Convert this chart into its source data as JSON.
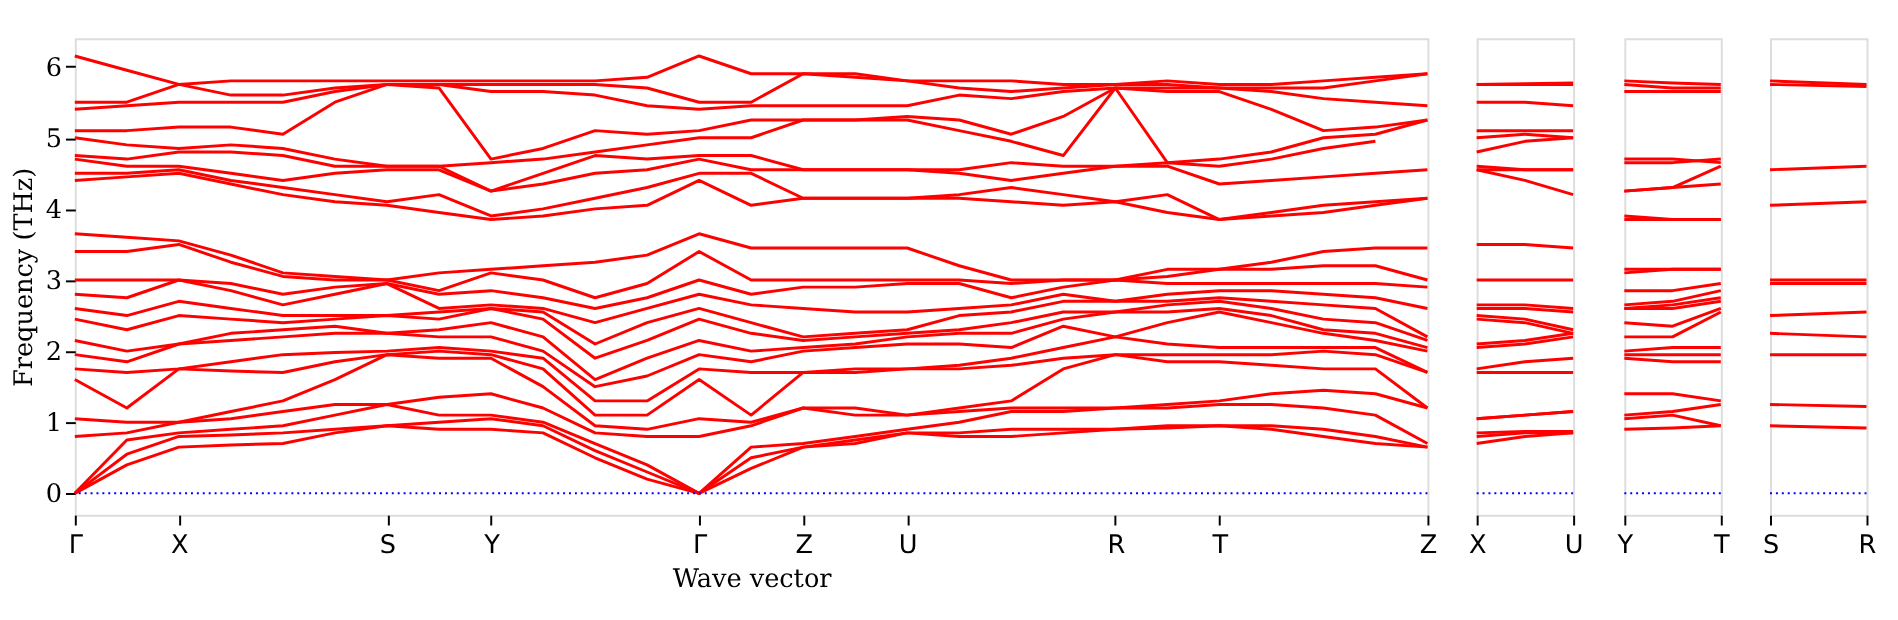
{
  "chart_data": [
    {
      "type": "line",
      "xlabel": "Wave vector",
      "ylabel": "Frequency (THz)",
      "categories": [
        "Γ",
        null,
        "X",
        null,
        null,
        null,
        "S",
        null,
        "Y",
        null,
        null,
        null,
        "Γ",
        null,
        "Z",
        null,
        "U",
        null,
        null,
        null,
        "R",
        null,
        "T",
        null,
        null,
        null,
        "Z"
      ],
      "ylim": [
        -0.3,
        6.4
      ],
      "yticks": [
        0,
        1,
        2,
        3,
        4,
        5,
        6
      ],
      "grid": false,
      "legend": false,
      "ref_lines": [
        {
          "axis": "y",
          "value": 0,
          "color": "#0000ff",
          "line_style": "dotted"
        }
      ],
      "series": [
        {
          "color": "#ff0000",
          "values": [
            0,
            0.4,
            0.65,
            0.68,
            0.7,
            0.85,
            0.95,
            0.9,
            0.9,
            0.85,
            0.5,
            0.2,
            0,
            0.35,
            0.65,
            0.7,
            0.85,
            0.8,
            0.8,
            0.85,
            0.9,
            0.92,
            0.95,
            0.9,
            0.8,
            0.7,
            0.65
          ]
        },
        {
          "color": "#ff0000",
          "values": [
            0,
            0.55,
            0.8,
            0.82,
            0.85,
            0.9,
            0.95,
            1.0,
            1.05,
            0.95,
            0.6,
            0.3,
            0,
            0.5,
            0.65,
            0.75,
            0.85,
            0.85,
            0.9,
            0.9,
            0.9,
            0.95,
            0.95,
            0.95,
            0.9,
            0.8,
            0.65
          ]
        },
        {
          "color": "#ff0000",
          "values": [
            0,
            0.75,
            0.85,
            0.9,
            0.95,
            1.1,
            1.25,
            1.1,
            1.1,
            1.0,
            0.7,
            0.4,
            0,
            0.65,
            0.7,
            0.8,
            0.9,
            1.0,
            1.15,
            1.15,
            1.2,
            1.2,
            1.25,
            1.25,
            1.2,
            1.1,
            0.7
          ]
        },
        {
          "color": "#ff0000",
          "values": [
            0.8,
            0.85,
            1.0,
            1.05,
            1.15,
            1.25,
            1.25,
            1.35,
            1.4,
            1.2,
            0.85,
            0.8,
            0.8,
            0.95,
            1.2,
            1.1,
            1.1,
            1.15,
            1.2,
            1.2,
            1.2,
            1.25,
            1.3,
            1.4,
            1.45,
            1.4,
            1.2
          ]
        },
        {
          "color": "#ff0000",
          "values": [
            1.05,
            1.0,
            1.0,
            1.15,
            1.3,
            1.6,
            1.95,
            1.9,
            1.9,
            1.5,
            0.95,
            0.9,
            1.05,
            1.0,
            1.2,
            1.2,
            1.1,
            1.2,
            1.3,
            1.75,
            1.95,
            1.85,
            1.85,
            1.8,
            1.75,
            1.75,
            1.2
          ]
        },
        {
          "color": "#ff0000",
          "values": [
            1.6,
            1.2,
            1.75,
            1.72,
            1.7,
            1.85,
            1.95,
            2.0,
            1.95,
            1.75,
            1.1,
            1.1,
            1.6,
            1.1,
            1.7,
            1.7,
            1.75,
            1.75,
            1.8,
            1.9,
            1.95,
            1.95,
            1.95,
            1.95,
            2.0,
            1.95,
            1.7
          ]
        },
        {
          "color": "#ff0000",
          "values": [
            1.75,
            1.7,
            1.75,
            1.85,
            1.95,
            1.98,
            2.0,
            2.05,
            2.0,
            1.9,
            1.3,
            1.3,
            1.75,
            1.7,
            1.7,
            1.75,
            1.75,
            1.8,
            1.9,
            2.05,
            2.2,
            2.1,
            2.05,
            2.05,
            2.05,
            2.05,
            1.7
          ]
        },
        {
          "color": "#ff0000",
          "values": [
            1.95,
            1.85,
            2.1,
            2.15,
            2.2,
            2.25,
            2.25,
            2.2,
            2.2,
            2.0,
            1.5,
            1.65,
            1.95,
            1.85,
            2.0,
            2.05,
            2.1,
            2.1,
            2.05,
            2.35,
            2.2,
            2.4,
            2.55,
            2.4,
            2.25,
            2.15,
            2.0
          ]
        },
        {
          "color": "#ff0000",
          "values": [
            2.15,
            2.0,
            2.1,
            2.25,
            2.3,
            2.35,
            2.25,
            2.3,
            2.4,
            2.2,
            1.6,
            1.9,
            2.15,
            2.0,
            2.05,
            2.1,
            2.2,
            2.25,
            2.25,
            2.45,
            2.55,
            2.55,
            2.6,
            2.5,
            2.3,
            2.25,
            2.05
          ]
        },
        {
          "color": "#ff0000",
          "values": [
            2.45,
            2.3,
            2.5,
            2.45,
            2.4,
            2.45,
            2.5,
            2.45,
            2.6,
            2.45,
            1.9,
            2.15,
            2.45,
            2.25,
            2.15,
            2.2,
            2.25,
            2.3,
            2.4,
            2.55,
            2.55,
            2.65,
            2.7,
            2.6,
            2.45,
            2.4,
            2.15
          ]
        },
        {
          "color": "#ff0000",
          "values": [
            2.6,
            2.5,
            2.7,
            2.6,
            2.5,
            2.5,
            2.5,
            2.55,
            2.6,
            2.55,
            2.1,
            2.4,
            2.6,
            2.4,
            2.2,
            2.25,
            2.3,
            2.5,
            2.55,
            2.7,
            2.7,
            2.7,
            2.75,
            2.7,
            2.65,
            2.6,
            2.2
          ]
        },
        {
          "color": "#ff0000",
          "values": [
            2.8,
            2.75,
            3.0,
            2.85,
            2.65,
            2.8,
            2.95,
            2.6,
            2.65,
            2.6,
            2.4,
            2.6,
            2.8,
            2.65,
            2.6,
            2.55,
            2.55,
            2.6,
            2.65,
            2.8,
            2.7,
            2.8,
            2.85,
            2.85,
            2.8,
            2.75,
            2.6
          ]
        },
        {
          "color": "#ff0000",
          "values": [
            3.0,
            3.0,
            3.0,
            2.95,
            2.8,
            2.9,
            2.95,
            2.8,
            2.85,
            2.75,
            2.6,
            2.75,
            3.0,
            2.8,
            2.9,
            2.9,
            2.95,
            2.95,
            2.75,
            2.9,
            3.0,
            2.95,
            2.95,
            2.95,
            2.95,
            2.95,
            2.9
          ]
        },
        {
          "color": "#ff0000",
          "values": [
            3.4,
            3.4,
            3.5,
            3.25,
            3.05,
            3.0,
            3.0,
            2.85,
            3.1,
            3.0,
            2.75,
            2.95,
            3.4,
            3.0,
            3.0,
            3.0,
            3.0,
            3.0,
            2.95,
            3.0,
            3.0,
            3.05,
            3.15,
            3.15,
            3.2,
            3.2,
            3.0
          ]
        },
        {
          "color": "#ff0000",
          "values": [
            3.65,
            3.6,
            3.55,
            3.35,
            3.1,
            3.05,
            3.0,
            3.1,
            3.15,
            3.2,
            3.25,
            3.35,
            3.65,
            3.45,
            3.45,
            3.45,
            3.45,
            3.2,
            3.0,
            3.0,
            3.0,
            3.15,
            3.15,
            3.25,
            3.4,
            3.45,
            3.45
          ]
        },
        {
          "color": "#ff0000",
          "values": [
            4.4,
            4.45,
            4.5,
            4.35,
            4.2,
            4.1,
            4.05,
            3.95,
            3.85,
            3.9,
            4.0,
            4.05,
            4.4,
            4.05,
            4.15,
            4.15,
            4.15,
            4.15,
            4.1,
            4.05,
            4.1,
            3.95,
            3.85,
            3.9,
            3.95,
            4.05,
            4.15
          ]
        },
        {
          "color": "#ff0000",
          "values": [
            4.5,
            4.5,
            4.55,
            4.4,
            4.3,
            4.2,
            4.1,
            4.2,
            3.9,
            4.0,
            4.15,
            4.3,
            4.5,
            4.5,
            4.15,
            4.15,
            4.15,
            4.2,
            4.3,
            4.2,
            4.1,
            4.2,
            3.85,
            3.95,
            4.05,
            4.1,
            4.15
          ]
        },
        {
          "color": "#ff0000",
          "values": [
            4.7,
            4.6,
            4.6,
            4.5,
            4.4,
            4.5,
            4.55,
            4.55,
            4.25,
            4.35,
            4.5,
            4.55,
            4.7,
            4.55,
            4.55,
            4.55,
            4.55,
            4.5,
            4.4,
            4.5,
            4.6,
            4.6,
            4.35,
            4.4,
            4.45,
            4.5,
            4.55
          ]
        },
        {
          "color": "#ff0000",
          "values": [
            4.75,
            4.7,
            4.8,
            4.8,
            4.75,
            4.6,
            4.6,
            4.6,
            4.25,
            4.5,
            4.75,
            4.7,
            4.75,
            4.75,
            4.55,
            4.55,
            4.55,
            4.55,
            4.65,
            4.6,
            4.6,
            4.65,
            4.6,
            4.7,
            4.85,
            4.95,
            null
          ]
        },
        {
          "color": "#ff0000",
          "values": [
            5.0,
            4.9,
            4.85,
            4.9,
            4.85,
            4.7,
            4.6,
            4.6,
            4.65,
            4.7,
            4.8,
            4.9,
            5.0,
            5.0,
            5.25,
            5.25,
            5.25,
            5.1,
            4.95,
            4.75,
            5.7,
            4.65,
            4.7,
            4.8,
            5.0,
            5.05,
            5.25
          ]
        },
        {
          "color": "#ff0000",
          "values": [
            5.1,
            5.1,
            5.15,
            5.15,
            5.05,
            5.5,
            5.75,
            5.7,
            4.7,
            4.85,
            5.1,
            5.05,
            5.1,
            5.25,
            5.25,
            5.25,
            5.3,
            5.25,
            5.05,
            5.3,
            5.7,
            5.65,
            5.65,
            5.4,
            5.1,
            5.15,
            5.25
          ]
        },
        {
          "color": "#ff0000",
          "values": [
            5.4,
            5.45,
            5.5,
            5.5,
            5.5,
            5.65,
            5.75,
            5.75,
            5.65,
            5.65,
            5.6,
            5.45,
            5.4,
            5.45,
            5.45,
            5.45,
            5.45,
            5.6,
            5.55,
            5.65,
            5.7,
            5.7,
            5.7,
            5.65,
            5.55,
            5.5,
            5.45
          ]
        },
        {
          "color": "#ff0000",
          "values": [
            5.5,
            5.5,
            5.75,
            5.6,
            5.6,
            5.7,
            5.75,
            5.75,
            5.75,
            5.75,
            5.75,
            5.7,
            5.5,
            5.5,
            5.9,
            5.85,
            5.8,
            5.7,
            5.65,
            5.7,
            5.75,
            5.75,
            5.7,
            5.7,
            5.7,
            5.8,
            5.9
          ]
        },
        {
          "color": "#ff0000",
          "values": [
            6.15,
            5.95,
            5.75,
            5.8,
            5.8,
            5.8,
            5.8,
            5.8,
            5.8,
            5.8,
            5.8,
            5.85,
            6.15,
            5.9,
            5.9,
            5.9,
            5.8,
            5.8,
            5.8,
            5.75,
            5.75,
            5.8,
            5.75,
            5.75,
            5.8,
            5.85,
            5.9
          ]
        }
      ]
    },
    {
      "type": "line",
      "categories": [
        "X",
        null,
        "U"
      ],
      "ylim": [
        -0.3,
        6.4
      ],
      "tick_labels": "x",
      "grid": false,
      "legend": false,
      "ref_lines": [
        {
          "axis": "y",
          "value": 0,
          "color": "#0000ff",
          "line_style": "dotted"
        }
      ],
      "series": [
        {
          "color": "#ff0000",
          "values": [
            0.7,
            0.8,
            0.85
          ]
        },
        {
          "color": "#ff0000",
          "values": [
            0.8,
            0.85,
            0.85
          ]
        },
        {
          "color": "#ff0000",
          "values": [
            0.85,
            0.87,
            0.87
          ]
        },
        {
          "color": "#ff0000",
          "values": [
            1.05,
            1.1,
            1.15
          ]
        },
        {
          "color": "#ff0000",
          "values": [
            1.05,
            1.1,
            1.15
          ]
        },
        {
          "color": "#ff0000",
          "values": [
            1.7,
            1.7,
            1.7
          ]
        },
        {
          "color": "#ff0000",
          "values": [
            1.75,
            1.85,
            1.9
          ]
        },
        {
          "color": "#ff0000",
          "values": [
            2.05,
            2.1,
            2.2
          ]
        },
        {
          "color": "#ff0000",
          "values": [
            2.1,
            2.15,
            2.25
          ]
        },
        {
          "color": "#ff0000",
          "values": [
            2.45,
            2.4,
            2.25
          ]
        },
        {
          "color": "#ff0000",
          "values": [
            2.5,
            2.45,
            2.3
          ]
        },
        {
          "color": "#ff0000",
          "values": [
            2.6,
            2.6,
            2.55
          ]
        },
        {
          "color": "#ff0000",
          "values": [
            2.65,
            2.65,
            2.6
          ]
        },
        {
          "color": "#ff0000",
          "values": [
            3.0,
            3.0,
            3.0
          ]
        },
        {
          "color": "#ff0000",
          "values": [
            3.5,
            3.5,
            3.45
          ]
        },
        {
          "color": "#ff0000",
          "values": [
            4.55,
            4.4,
            4.2
          ]
        },
        {
          "color": "#ff0000",
          "values": [
            4.55,
            4.55,
            4.55
          ]
        },
        {
          "color": "#ff0000",
          "values": [
            4.6,
            4.55,
            4.55
          ]
        },
        {
          "color": "#ff0000",
          "values": [
            4.8,
            4.95,
            5.0
          ]
        },
        {
          "color": "#ff0000",
          "values": [
            5.0,
            5.05,
            5.0
          ]
        },
        {
          "color": "#ff0000",
          "values": [
            5.1,
            5.1,
            5.1
          ]
        },
        {
          "color": "#ff0000",
          "values": [
            5.5,
            5.5,
            5.45
          ]
        },
        {
          "color": "#ff0000",
          "values": [
            5.75,
            5.75,
            5.75
          ]
        },
        {
          "color": "#ff0000",
          "values": [
            5.75,
            5.76,
            5.77
          ]
        }
      ]
    },
    {
      "type": "line",
      "categories": [
        "Y",
        null,
        "T"
      ],
      "ylim": [
        -0.3,
        6.4
      ],
      "tick_labels": "x",
      "grid": false,
      "legend": false,
      "ref_lines": [
        {
          "axis": "y",
          "value": 0,
          "color": "#0000ff",
          "line_style": "dotted"
        }
      ],
      "series": [
        {
          "color": "#ff0000",
          "values": [
            0.9,
            0.92,
            0.95
          ]
        },
        {
          "color": "#ff0000",
          "values": [
            1.05,
            1.1,
            0.95
          ]
        },
        {
          "color": "#ff0000",
          "values": [
            1.1,
            1.15,
            1.25
          ]
        },
        {
          "color": "#ff0000",
          "values": [
            1.4,
            1.4,
            1.3
          ]
        },
        {
          "color": "#ff0000",
          "values": [
            1.9,
            1.85,
            1.85
          ]
        },
        {
          "color": "#ff0000",
          "values": [
            1.95,
            1.95,
            1.95
          ]
        },
        {
          "color": "#ff0000",
          "values": [
            2.0,
            2.05,
            2.05
          ]
        },
        {
          "color": "#ff0000",
          "values": [
            2.2,
            2.2,
            2.55
          ]
        },
        {
          "color": "#ff0000",
          "values": [
            2.4,
            2.35,
            2.6
          ]
        },
        {
          "color": "#ff0000",
          "values": [
            2.6,
            2.6,
            2.7
          ]
        },
        {
          "color": "#ff0000",
          "values": [
            2.6,
            2.65,
            2.75
          ]
        },
        {
          "color": "#ff0000",
          "values": [
            2.65,
            2.7,
            2.85
          ]
        },
        {
          "color": "#ff0000",
          "values": [
            2.85,
            2.85,
            2.95
          ]
        },
        {
          "color": "#ff0000",
          "values": [
            3.1,
            3.15,
            3.15
          ]
        },
        {
          "color": "#ff0000",
          "values": [
            3.15,
            3.15,
            3.15
          ]
        },
        {
          "color": "#ff0000",
          "values": [
            3.85,
            3.85,
            3.85
          ]
        },
        {
          "color": "#ff0000",
          "values": [
            3.9,
            3.85,
            3.85
          ]
        },
        {
          "color": "#ff0000",
          "values": [
            4.25,
            4.3,
            4.35
          ]
        },
        {
          "color": "#ff0000",
          "values": [
            4.25,
            4.3,
            4.6
          ]
        },
        {
          "color": "#ff0000",
          "values": [
            4.65,
            4.65,
            4.7
          ]
        },
        {
          "color": "#ff0000",
          "values": [
            4.7,
            4.7,
            4.65
          ]
        },
        {
          "color": "#ff0000",
          "values": [
            5.65,
            5.65,
            5.65
          ]
        },
        {
          "color": "#ff0000",
          "values": [
            5.75,
            5.7,
            5.7
          ]
        },
        {
          "color": "#ff0000",
          "values": [
            5.8,
            5.77,
            5.75
          ]
        }
      ]
    },
    {
      "type": "line",
      "categories": [
        "S",
        "R"
      ],
      "ylim": [
        -0.3,
        6.4
      ],
      "tick_labels": "x",
      "grid": false,
      "legend": false,
      "ref_lines": [
        {
          "axis": "y",
          "value": 0,
          "color": "#0000ff",
          "line_style": "dotted"
        }
      ],
      "series": [
        {
          "color": "#ff0000",
          "values": [
            0.95,
            0.92
          ]
        },
        {
          "color": "#ff0000",
          "values": [
            null,
            null
          ]
        },
        {
          "color": "#ff0000",
          "values": [
            1.25,
            1.22
          ]
        },
        {
          "color": "#ff0000",
          "values": [
            null,
            null
          ]
        },
        {
          "color": "#ff0000",
          "values": [
            1.95,
            1.95
          ]
        },
        {
          "color": "#ff0000",
          "values": [
            null,
            null
          ]
        },
        {
          "color": "#ff0000",
          "values": [
            2.25,
            2.2
          ]
        },
        {
          "color": "#ff0000",
          "values": [
            null,
            null
          ]
        },
        {
          "color": "#ff0000",
          "values": [
            2.5,
            2.55
          ]
        },
        {
          "color": "#ff0000",
          "values": [
            null,
            null
          ]
        },
        {
          "color": "#ff0000",
          "values": [
            2.95,
            2.95
          ]
        },
        {
          "color": "#ff0000",
          "values": [
            null,
            null
          ]
        },
        {
          "color": "#ff0000",
          "values": [
            3.0,
            3.0
          ]
        },
        {
          "color": "#ff0000",
          "values": [
            null,
            null
          ]
        },
        {
          "color": "#ff0000",
          "values": [
            null,
            null
          ]
        },
        {
          "color": "#ff0000",
          "values": [
            4.05,
            4.1
          ]
        },
        {
          "color": "#ff0000",
          "values": [
            null,
            null
          ]
        },
        {
          "color": "#ff0000",
          "values": [
            4.55,
            4.6
          ]
        },
        {
          "color": "#ff0000",
          "values": [
            null,
            null
          ]
        },
        {
          "color": "#ff0000",
          "values": [
            null,
            null
          ]
        },
        {
          "color": "#ff0000",
          "values": [
            5.75,
            5.72
          ]
        },
        {
          "color": "#ff0000",
          "values": [
            null,
            null
          ]
        },
        {
          "color": "#ff0000",
          "values": [
            null,
            null
          ]
        },
        {
          "color": "#ff0000",
          "values": [
            5.8,
            5.75
          ]
        }
      ]
    }
  ]
}
